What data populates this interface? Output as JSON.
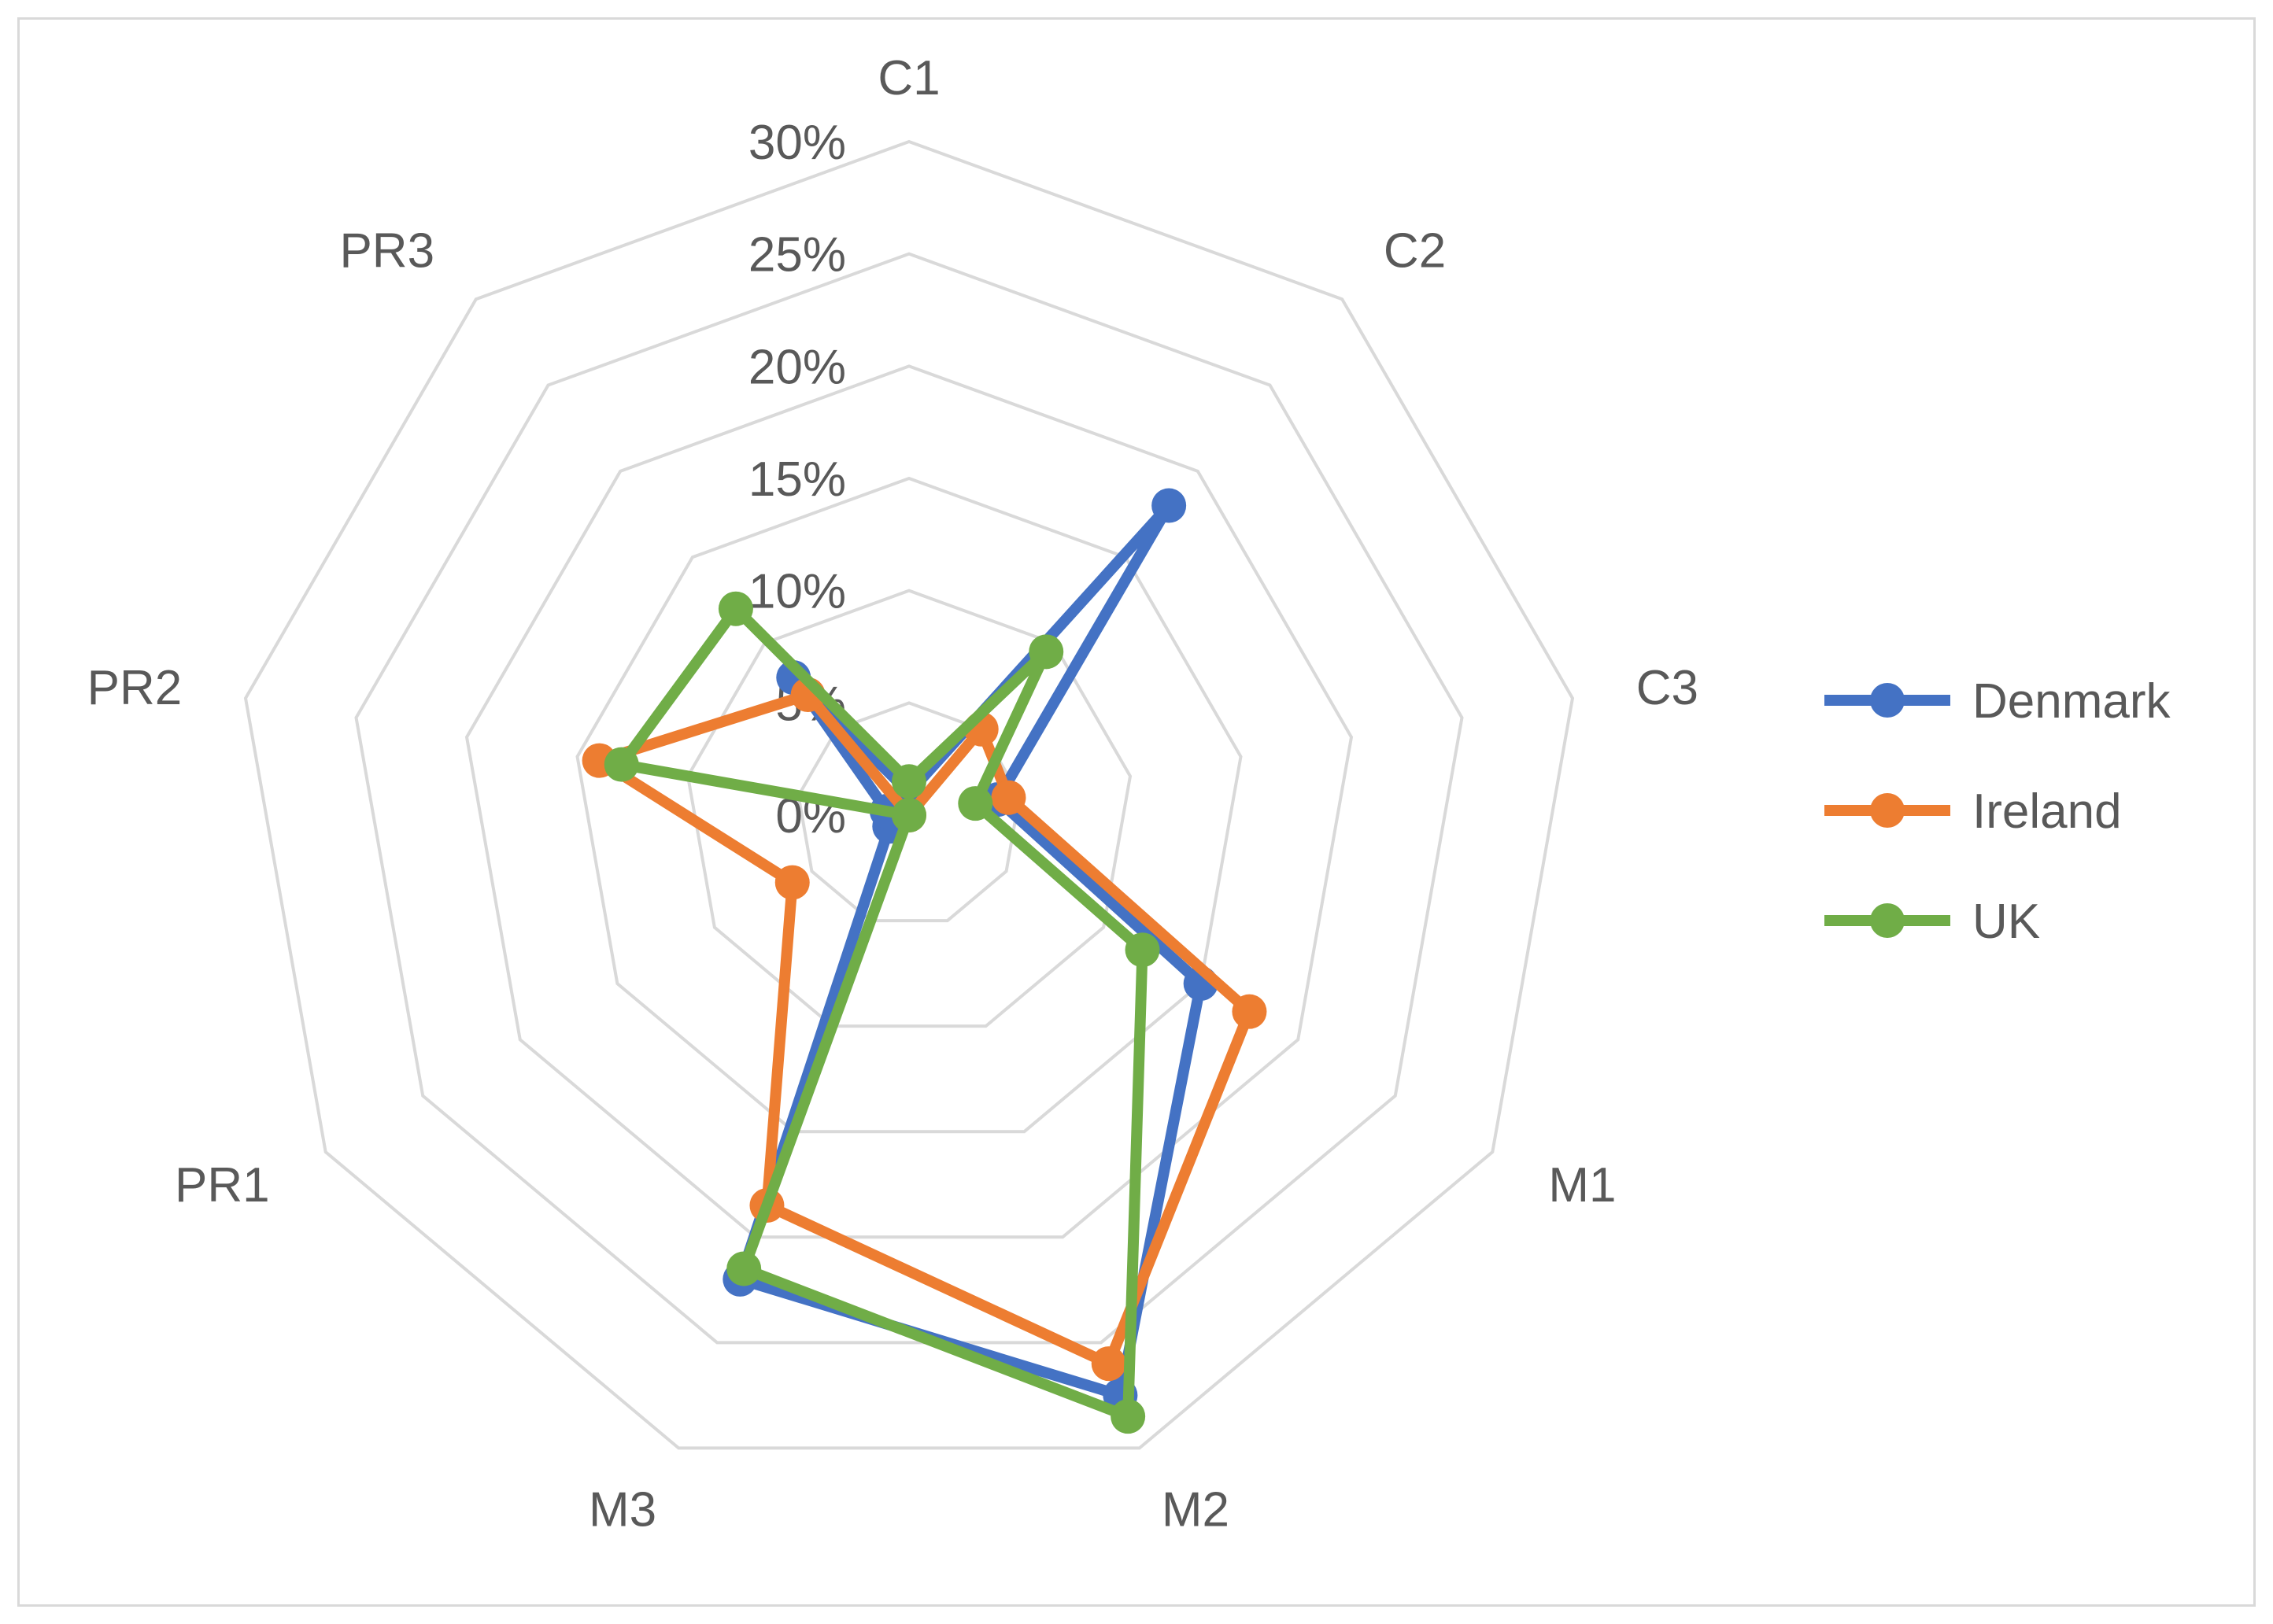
{
  "chart_data": {
    "type": "radar",
    "title": "",
    "categories": [
      "C1",
      "C2",
      "C3",
      "M1",
      "M2",
      "M3",
      "PR1",
      "PR2",
      "PR3"
    ],
    "radial_axis": {
      "min": 0,
      "max": 0.3,
      "step": 0.05,
      "tick_labels": [
        "0%",
        "5%",
        "10%",
        "15%",
        "20%",
        "25%",
        "30%"
      ]
    },
    "gridlines": true,
    "legend_position": "right",
    "series": [
      {
        "name": "Denmark",
        "color": "#4472C4",
        "values": [
          0.01,
          0.18,
          0.04,
          0.15,
          0.275,
          0.22,
          0.01,
          0.01,
          0.08
        ]
      },
      {
        "name": "Ireland",
        "color": "#ED7D31",
        "values": [
          0.0,
          0.05,
          0.045,
          0.175,
          0.26,
          0.185,
          0.06,
          0.14,
          0.07
        ]
      },
      {
        "name": "UK",
        "color": "#70AD47",
        "values": [
          0.015,
          0.095,
          0.03,
          0.12,
          0.285,
          0.215,
          0.0,
          0.13,
          0.12
        ]
      }
    ]
  }
}
